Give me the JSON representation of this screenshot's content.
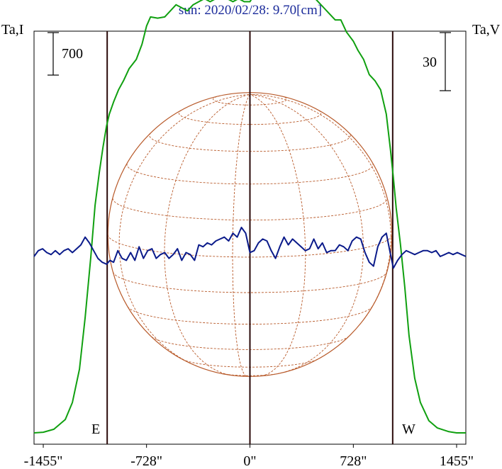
{
  "chart_data": {
    "type": "line",
    "title": "sun: 2020/02/28: 9.70[cm]",
    "left_axis_label": "Ta,I",
    "right_axis_label": "Ta,V",
    "left_scale_bar": "700",
    "right_scale_bar": "30",
    "east_label": "E",
    "west_label": "W",
    "xlim": [
      -1520,
      1520
    ],
    "x_ticks": [
      -1455,
      -728,
      0,
      728,
      1455
    ],
    "x_tick_labels": [
      "-1455\"",
      "-728\"",
      "0\"",
      "728\"",
      "1455\""
    ],
    "limb_markers": [
      -1005,
      0,
      1005
    ],
    "solar_radius_arcsec": 1000,
    "grid": false,
    "colors": {
      "intensity": "#10a010",
      "polarization": "#0a1a8a",
      "disk": "#b85a2a",
      "frame": "#000000",
      "title": "#1a2a9a",
      "marker": "#2a0a0a"
    },
    "series": [
      {
        "key": "I",
        "color": "#10a010",
        "x": [
          -1520,
          -1455,
          -1380,
          -1300,
          -1250,
          -1200,
          -1160,
          -1120,
          -1090,
          -1060,
          -1035,
          -1010,
          -990,
          -960,
          -925,
          -890,
          -850,
          -800,
          -760,
          -728,
          -700,
          -650,
          -600,
          -560,
          -520,
          -480,
          -440,
          -400,
          -360,
          -320,
          -280,
          -240,
          -200,
          -160,
          -120,
          -80,
          -40,
          0,
          40,
          80,
          120,
          160,
          200,
          240,
          280,
          320,
          360,
          400,
          440,
          480,
          520,
          560,
          600,
          640,
          680,
          728,
          760,
          800,
          840,
          880,
          920,
          960,
          990,
          1010,
          1030,
          1060,
          1090,
          1120,
          1160,
          1200,
          1260,
          1320,
          1400,
          1455,
          1520
        ],
        "y": [
          0,
          10,
          60,
          220,
          500,
          1050,
          1900,
          2900,
          3750,
          4300,
          4700,
          5050,
          5250,
          5450,
          5650,
          5800,
          6000,
          6150,
          6400,
          6700,
          6850,
          6830,
          6850,
          6950,
          7050,
          7000,
          6950,
          7050,
          7100,
          7150,
          7100,
          7150,
          7200,
          7150,
          7100,
          7150,
          7100,
          7100,
          7250,
          7350,
          7300,
          7350,
          7250,
          7300,
          7350,
          7300,
          7200,
          7150,
          7200,
          7100,
          7000,
          6900,
          6800,
          6800,
          6600,
          6450,
          6300,
          6150,
          5900,
          5800,
          5650,
          5250,
          4650,
          4200,
          3700,
          3100,
          2400,
          1600,
          900,
          500,
          200,
          80,
          20,
          0,
          0
        ]
      },
      {
        "key": "V",
        "color": "#0a1a8a",
        "x": [
          -1520,
          -1490,
          -1460,
          -1430,
          -1400,
          -1370,
          -1340,
          -1310,
          -1280,
          -1250,
          -1220,
          -1190,
          -1160,
          -1130,
          -1100,
          -1070,
          -1040,
          -1010,
          -985,
          -960,
          -930,
          -900,
          -870,
          -840,
          -810,
          -780,
          -750,
          -720,
          -690,
          -660,
          -630,
          -600,
          -570,
          -540,
          -510,
          -480,
          -450,
          -420,
          -390,
          -360,
          -330,
          -300,
          -270,
          -240,
          -210,
          -180,
          -150,
          -120,
          -90,
          -60,
          -30,
          0,
          30,
          60,
          90,
          120,
          150,
          180,
          210,
          240,
          270,
          300,
          330,
          360,
          390,
          420,
          450,
          480,
          510,
          540,
          570,
          600,
          630,
          660,
          690,
          720,
          750,
          780,
          810,
          840,
          870,
          900,
          930,
          960,
          990,
          1010,
          1040,
          1070,
          1100,
          1130,
          1160,
          1190,
          1220,
          1250,
          1280,
          1310,
          1340,
          1370,
          1400,
          1430,
          1460,
          1490,
          1520
        ],
        "y": [
          0,
          3,
          4,
          2,
          1,
          3,
          1,
          3,
          4,
          2,
          4,
          6,
          10,
          7,
          3,
          -1,
          -3,
          -4,
          -2,
          -3,
          3,
          -1,
          -2,
          2,
          -2,
          5,
          -1,
          3,
          4,
          -1,
          1,
          2,
          -1,
          1,
          4,
          -2,
          2,
          1,
          -2,
          6,
          5,
          7,
          6,
          8,
          9,
          10,
          8,
          12,
          10,
          15,
          12,
          2,
          3,
          7,
          9,
          8,
          3,
          -1,
          5,
          10,
          6,
          9,
          7,
          5,
          3,
          4,
          9,
          4,
          7,
          2,
          3,
          3,
          6,
          5,
          3,
          8,
          10,
          9,
          2,
          -3,
          -5,
          5,
          10,
          12,
          1,
          -6,
          -2,
          1,
          3,
          2,
          1,
          2,
          3,
          3,
          2,
          3,
          0,
          1,
          2,
          1,
          2,
          1,
          0
        ]
      }
    ]
  }
}
